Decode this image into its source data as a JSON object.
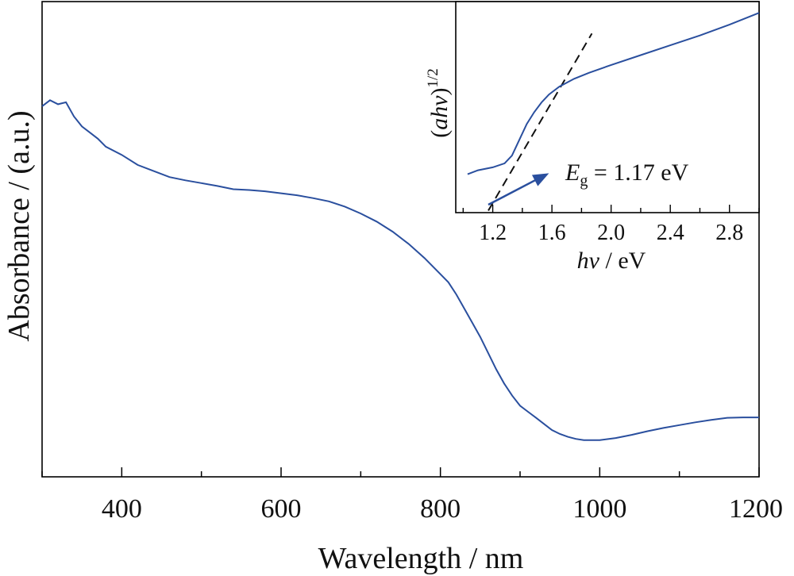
{
  "chart_data": [
    {
      "type": "line",
      "xlabel": "Wavelength / nm",
      "ylabel": "Absorbance / (a.u.)",
      "xlim": [
        300,
        1200
      ],
      "ylim": [
        0,
        1
      ],
      "x_ticks": [
        400,
        600,
        800,
        1000,
        1200
      ],
      "x_tick_labels": [
        "400",
        "600",
        "800",
        "1000",
        "1200"
      ],
      "y_ticks": [],
      "grid": false,
      "line_color": "#2a4f9e",
      "series": [
        {
          "x": [
            300,
            310,
            320,
            330,
            340,
            350,
            360,
            370,
            380,
            400,
            420,
            440,
            460,
            480,
            500,
            520,
            540,
            560,
            580,
            600,
            620,
            640,
            660,
            680,
            700,
            720,
            740,
            760,
            780,
            800,
            810,
            820,
            830,
            840,
            850,
            860,
            870,
            880,
            890,
            900,
            910,
            920,
            930,
            940,
            950,
            960,
            970,
            980,
            1000,
            1020,
            1040,
            1060,
            1080,
            1100,
            1120,
            1140,
            1160,
            1180,
            1200
          ],
          "y": [
            0.855,
            0.87,
            0.86,
            0.865,
            0.83,
            0.805,
            0.79,
            0.775,
            0.755,
            0.735,
            0.71,
            0.695,
            0.68,
            0.672,
            0.665,
            0.658,
            0.65,
            0.648,
            0.645,
            0.64,
            0.635,
            0.628,
            0.62,
            0.607,
            0.59,
            0.57,
            0.545,
            0.515,
            0.48,
            0.44,
            0.42,
            0.39,
            0.355,
            0.32,
            0.285,
            0.245,
            0.205,
            0.17,
            0.14,
            0.115,
            0.1,
            0.085,
            0.07,
            0.055,
            0.045,
            0.038,
            0.033,
            0.03,
            0.03,
            0.035,
            0.043,
            0.052,
            0.06,
            0.067,
            0.074,
            0.08,
            0.085,
            0.086,
            0.086
          ]
        }
      ]
    },
    {
      "type": "line",
      "xlabel": "hv / eV",
      "ylabel": "(ahv)1/2",
      "xlim": [
        0.95,
        3.0
      ],
      "ylim": [
        0,
        1
      ],
      "x_ticks": [
        1.2,
        1.6,
        2.0,
        2.4,
        2.8
      ],
      "x_tick_labels": [
        "1.2",
        "1.6",
        "2.0",
        "2.4",
        "2.8"
      ],
      "y_ticks": [],
      "grid": false,
      "annotation": "Eg = 1.17 eV",
      "annotation_parts": {
        "symbol": "E",
        "subscript": "g",
        "value": " = 1.17 eV"
      },
      "band_gap": 1.17,
      "line_color": "#2a4f9e",
      "tangent_color": "#111111",
      "tangent": {
        "x": [
          1.17,
          1.87
        ],
        "y": [
          -0.03,
          0.87
        ]
      },
      "series": [
        {
          "x": [
            1.03,
            1.1,
            1.2,
            1.28,
            1.33,
            1.38,
            1.43,
            1.48,
            1.53,
            1.58,
            1.65,
            1.75,
            1.85,
            2.0,
            2.2,
            2.4,
            2.6,
            2.8,
            3.0
          ],
          "y": [
            0.155,
            0.175,
            0.19,
            0.21,
            0.25,
            0.33,
            0.41,
            0.47,
            0.52,
            0.56,
            0.6,
            0.64,
            0.67,
            0.71,
            0.76,
            0.81,
            0.86,
            0.915,
            0.975
          ]
        }
      ]
    }
  ]
}
